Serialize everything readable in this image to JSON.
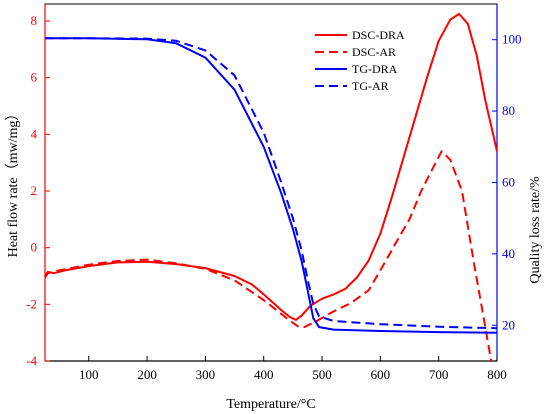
{
  "chart_data": {
    "type": "line",
    "xlabel": "Temperature/°C",
    "ylabel_left": "Heat flow rate（mw/mg）",
    "ylabel_right": "Quality loss rate/%",
    "xlim": [
      25,
      800
    ],
    "ylim_left": [
      -4,
      8.6
    ],
    "ylim_right": [
      10,
      110
    ],
    "x_ticks": [
      100,
      200,
      300,
      400,
      500,
      600,
      700,
      800
    ],
    "y_left_ticks": [
      -4,
      -2,
      0,
      2,
      4,
      6,
      8
    ],
    "y_right_ticks": [
      20,
      40,
      60,
      80,
      100
    ],
    "grid": false,
    "legend_position": "top-right",
    "colors": {
      "dsc": "#ff0000",
      "tg": "#0000ff",
      "left_axis": "#ff0000",
      "right_axis": "#0000ff"
    },
    "series": [
      {
        "name": "DSC-DRA",
        "axis": "left",
        "style": "solid",
        "color": "#ff0000",
        "points": [
          [
            25,
            -1.0
          ],
          [
            30,
            -0.85
          ],
          [
            40,
            -0.9
          ],
          [
            60,
            -0.8
          ],
          [
            100,
            -0.65
          ],
          [
            150,
            -0.52
          ],
          [
            200,
            -0.5
          ],
          [
            250,
            -0.58
          ],
          [
            300,
            -0.72
          ],
          [
            350,
            -1.0
          ],
          [
            380,
            -1.3
          ],
          [
            400,
            -1.65
          ],
          [
            430,
            -2.2
          ],
          [
            445,
            -2.45
          ],
          [
            455,
            -2.55
          ],
          [
            465,
            -2.4
          ],
          [
            480,
            -2.05
          ],
          [
            500,
            -1.8
          ],
          [
            520,
            -1.65
          ],
          [
            540,
            -1.45
          ],
          [
            560,
            -1.05
          ],
          [
            580,
            -0.45
          ],
          [
            600,
            0.5
          ],
          [
            620,
            1.8
          ],
          [
            650,
            3.9
          ],
          [
            680,
            6.0
          ],
          [
            700,
            7.3
          ],
          [
            720,
            8.05
          ],
          [
            735,
            8.25
          ],
          [
            750,
            7.9
          ],
          [
            765,
            6.8
          ],
          [
            780,
            5.2
          ],
          [
            800,
            3.4
          ]
        ]
      },
      {
        "name": "DSC-AR",
        "axis": "left",
        "style": "dashed",
        "color": "#ff0000",
        "points": [
          [
            25,
            -1.05
          ],
          [
            30,
            -0.9
          ],
          [
            50,
            -0.8
          ],
          [
            100,
            -0.6
          ],
          [
            150,
            -0.47
          ],
          [
            200,
            -0.42
          ],
          [
            250,
            -0.55
          ],
          [
            300,
            -0.75
          ],
          [
            350,
            -1.15
          ],
          [
            400,
            -1.85
          ],
          [
            440,
            -2.5
          ],
          [
            460,
            -2.8
          ],
          [
            470,
            -2.8
          ],
          [
            490,
            -2.6
          ],
          [
            520,
            -2.25
          ],
          [
            550,
            -1.95
          ],
          [
            580,
            -1.5
          ],
          [
            600,
            -0.8
          ],
          [
            630,
            0.3
          ],
          [
            650,
            1.0
          ],
          [
            670,
            2.0
          ],
          [
            690,
            2.8
          ],
          [
            705,
            3.4
          ],
          [
            720,
            3.1
          ],
          [
            740,
            2.0
          ],
          [
            760,
            -0.5
          ],
          [
            780,
            -2.8
          ],
          [
            790,
            -4.0
          ]
        ]
      },
      {
        "name": "TG-DRA",
        "axis": "right",
        "style": "solid",
        "color": "#0000ff",
        "points": [
          [
            25,
            100.4
          ],
          [
            100,
            100.4
          ],
          [
            200,
            100.1
          ],
          [
            250,
            99
          ],
          [
            300,
            95
          ],
          [
            350,
            86
          ],
          [
            400,
            70
          ],
          [
            430,
            57
          ],
          [
            450,
            47
          ],
          [
            465,
            38
          ],
          [
            475,
            30
          ],
          [
            485,
            22
          ],
          [
            495,
            19.5
          ],
          [
            520,
            18.8
          ],
          [
            600,
            18.4
          ],
          [
            700,
            18.1
          ],
          [
            800,
            17.9
          ]
        ]
      },
      {
        "name": "TG-AR",
        "axis": "right",
        "style": "dashed",
        "color": "#0000ff",
        "points": [
          [
            25,
            100.4
          ],
          [
            100,
            100.4
          ],
          [
            200,
            100.3
          ],
          [
            250,
            99.7
          ],
          [
            300,
            97
          ],
          [
            350,
            90
          ],
          [
            400,
            74
          ],
          [
            430,
            60
          ],
          [
            450,
            50
          ],
          [
            465,
            41
          ],
          [
            475,
            33
          ],
          [
            485,
            26
          ],
          [
            495,
            22.5
          ],
          [
            520,
            21.2
          ],
          [
            600,
            20.3
          ],
          [
            700,
            19.6
          ],
          [
            800,
            19.2
          ]
        ]
      }
    ]
  }
}
